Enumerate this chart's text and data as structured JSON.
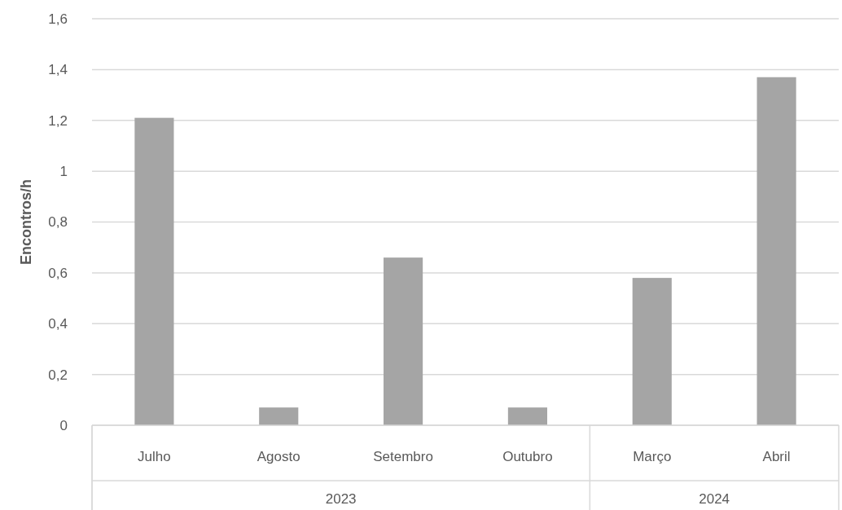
{
  "chart_data": {
    "type": "bar",
    "ylabel": "Encontros/h",
    "categories": [
      "Julho",
      "Agosto",
      "Setembro",
      "Outubro",
      "Março",
      "Abril"
    ],
    "values": [
      1.21,
      0.07,
      0.66,
      0.07,
      0.58,
      1.37
    ],
    "color": "#a5a5a5",
    "ylim": [
      0,
      1.6
    ],
    "yticks": [
      0,
      {
        "value": 0.2,
        "label": "0,2"
      },
      {
        "value": 0.4,
        "label": "0,4"
      },
      {
        "value": 0.6,
        "label": "0,6"
      },
      {
        "value": 0.8,
        "label": "0,8"
      },
      1,
      {
        "value": 1.2,
        "label": "1,2"
      },
      {
        "value": 1.4,
        "label": "1,4"
      },
      {
        "value": 1.6,
        "label": "1,6"
      }
    ],
    "grid": "y",
    "annotations": [
      "2023",
      "2024"
    ]
  }
}
